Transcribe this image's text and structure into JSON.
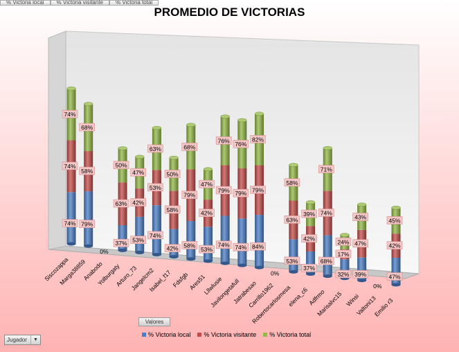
{
  "field_buttons": [
    "% Victoria local",
    "% Victoria visitante",
    "% Victoria total"
  ],
  "values_button": "Valores",
  "filter_button": {
    "label": "Jugador",
    "icon": "dropdown-arrow-icon"
  },
  "colors": {
    "local": "#4a7ec6",
    "visitante": "#c44d4b",
    "total": "#93b845"
  },
  "chart_data": {
    "type": "bar",
    "stacked": true,
    "title": "PROMEDIO DE VICTORIAS",
    "legend_position": "bottom",
    "categories": [
      "Siscozappa",
      "Marga38859",
      "Anabodo",
      "Yolburgaty",
      "Arturo_73",
      "Jangelcm2",
      "Isabel_f17",
      "Fdsfgb",
      "Ares51",
      "Lllwlusie",
      "Javilongetafull",
      "Jatrabesao",
      "Carrillo1962",
      "Robertocarlosmesa",
      "elena_c6",
      "Adfrmo",
      "Marisalvc15",
      "Winsi",
      "Valtoni13",
      "Emilio r3"
    ],
    "series": [
      {
        "name": "% Victoria local",
        "labels": [
          "74%",
          "79%",
          "0%",
          "37%",
          "53%",
          "74%",
          "42%",
          "58%",
          "53%",
          "74%",
          "74%",
          "84%",
          "0%",
          "53%",
          "37%",
          "68%",
          "32%",
          "39%",
          "0%",
          "47%"
        ]
      },
      {
        "name": "% Victoria visitante",
        "labels": [
          "74%",
          "58%",
          "",
          "63%",
          "42%",
          "53%",
          "58%",
          "79%",
          "42%",
          "79%",
          "79%",
          "79%",
          "",
          "63%",
          "42%",
          "74%",
          "17%",
          "47%",
          "",
          "42%"
        ]
      },
      {
        "name": "% Victoria total",
        "labels": [
          "74%",
          "68%",
          "",
          "50%",
          "47%",
          "63%",
          "50%",
          "68%",
          "47%",
          "76%",
          "76%",
          "82%",
          "",
          "58%",
          "39%",
          "71%",
          "24%",
          "43%",
          "",
          "45%"
        ]
      }
    ]
  }
}
